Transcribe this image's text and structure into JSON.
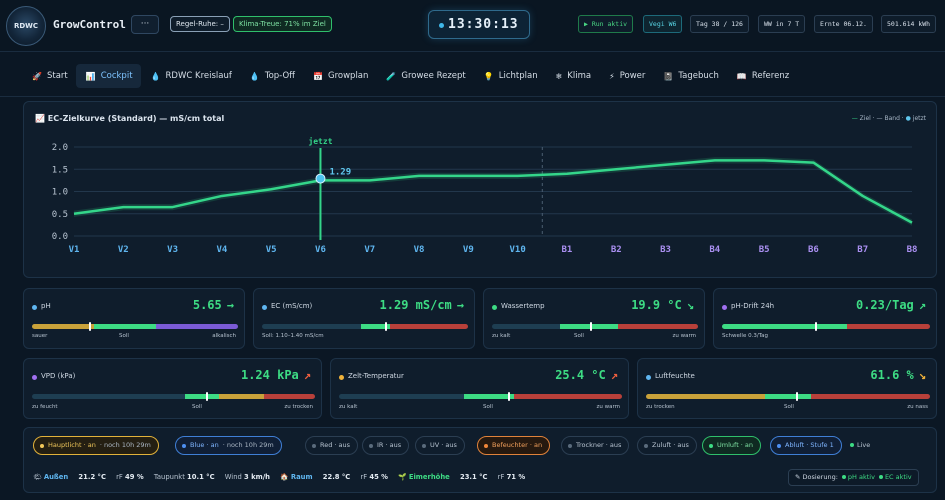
{
  "header": {
    "logo_text": "RDWC",
    "brand": "GrowControl",
    "more_label": "···",
    "regel_ruhe": "Regel-Ruhe: –",
    "klima_treue": "Klima-Treue: 71% im Ziel",
    "clock": "13:30:13",
    "run_status": "▶ Run aktiv",
    "phase": "Vegi W6",
    "tag": "Tag 38 / 126",
    "ww": "WW in 7 T",
    "ernte": "Ernte 06.12.",
    "kwh": "501.614 kWh"
  },
  "tabs": [
    {
      "icon": "🚀",
      "label": "Start",
      "active": false
    },
    {
      "icon": "📊",
      "label": "Cockpit",
      "active": true
    },
    {
      "icon": "💧",
      "label": "RDWC Kreislauf",
      "active": false
    },
    {
      "icon": "💧",
      "label": "Top-Off",
      "active": false
    },
    {
      "icon": "📅",
      "label": "Growplan",
      "active": false
    },
    {
      "icon": "🧪",
      "label": "Growee Rezept",
      "active": false
    },
    {
      "icon": "💡",
      "label": "Lichtplan",
      "active": false
    },
    {
      "icon": "❄",
      "label": "Klima",
      "active": false
    },
    {
      "icon": "⚡",
      "label": "Power",
      "active": false
    },
    {
      "icon": "📓",
      "label": "Tagebuch",
      "active": false
    },
    {
      "icon": "📖",
      "label": "Referenz",
      "active": false
    }
  ],
  "chart_data": {
    "type": "line",
    "title": "EC-Zielkurve (Standard) — mS/cm total",
    "legend": [
      "Ziel",
      "Band",
      "jetzt"
    ],
    "legend_placement": "top-right",
    "categories": [
      "V1",
      "V2",
      "V3",
      "V4",
      "V5",
      "V6",
      "V7",
      "V8",
      "V9",
      "V10",
      "B1",
      "B2",
      "B3",
      "B4",
      "B5",
      "B6",
      "B7",
      "B8"
    ],
    "series": [
      {
        "name": "Ziel",
        "values": [
          0.5,
          0.65,
          0.65,
          0.9,
          1.05,
          1.25,
          1.25,
          1.35,
          1.35,
          1.35,
          1.4,
          1.5,
          1.6,
          1.7,
          1.7,
          1.65,
          0.9,
          0.3
        ]
      }
    ],
    "yticks": [
      "0.0",
      "0.5",
      "1.0",
      "1.5",
      "2.0"
    ],
    "ylim": [
      0,
      2.0
    ],
    "now_index": 5,
    "now_label": "jetzt",
    "now_value": "1.29",
    "phase_split_after_index": 9,
    "grid": true
  },
  "cards": {
    "ph": {
      "label": "pH",
      "value": "5.65",
      "arrow": "→",
      "low": "sauer",
      "mid": "Soll",
      "high": "alkalisch",
      "level": 0.28,
      "dot": "#5fb6f0"
    },
    "ec": {
      "label": "EC (mS/cm)",
      "value": "1.29 mS/cm",
      "arrow": "→",
      "note": "Soll: 1.10–1.40 mS/cm",
      "level": 0.6,
      "dot": "#5fb6f0"
    },
    "water": {
      "label": "Wassertemp",
      "value": "19.9 °C",
      "arrow": "↘",
      "low": "zu kalt",
      "mid": "Soll",
      "high": "zu warm",
      "level": 0.48,
      "dot": "#3ddc84"
    },
    "drift": {
      "label": "pH-Drift 24h",
      "value": "0.23/Tag",
      "arrow": "↗",
      "note": "Schwelle 0.3/Tag",
      "level": 0.45,
      "dot": "#a070f0"
    },
    "vpd": {
      "label": "VPD (kPa)",
      "value": "1.24 kPa",
      "arrow": "↗",
      "low": "zu feucht",
      "mid": "Soll",
      "high": "zu trocken",
      "level": 0.62,
      "dot": "#a070f0"
    },
    "zelt": {
      "label": "Zelt-Temperatur",
      "value": "25.4 °C",
      "arrow": "↗",
      "low": "zu kalt",
      "mid": "Soll",
      "high": "zu warm",
      "level": 0.6,
      "dot": "#f0b23a"
    },
    "luft": {
      "label": "Luftfeuchte",
      "value": "61.6 %",
      "arrow": "↘",
      "low": "zu trocken",
      "mid": "Soll",
      "high": "zu nass",
      "level": 0.53,
      "dot": "#5fb6f0"
    }
  },
  "status": {
    "chips": [
      {
        "text": "Hauptlicht · an",
        "sub": "· noch 10h 29m",
        "style": "yellow"
      },
      {
        "text": "Blue · an",
        "sub": "· noch 10h 29m",
        "style": "blue"
      },
      {
        "text": "Red · aus",
        "sub": "",
        "style": "off"
      },
      {
        "text": "IR · aus",
        "sub": "",
        "style": "off"
      },
      {
        "text": "UV · aus",
        "sub": "",
        "style": "off"
      },
      {
        "text": "Befeuchter · an",
        "sub": "",
        "style": "orange"
      },
      {
        "text": "Trockner · aus",
        "sub": "",
        "style": "off"
      },
      {
        "text": "Zuluft · aus",
        "sub": "",
        "style": "off"
      },
      {
        "text": "Umluft · an",
        "sub": "",
        "style": "green"
      },
      {
        "text": "Abluft · Stufe 1",
        "sub": "",
        "style": "blue"
      }
    ],
    "live": "Live",
    "env": {
      "aussen_label": "Außen",
      "aussen_temp": "21.2 °C",
      "aussen_rf_label": "rF",
      "aussen_rf": "49 %",
      "taupunkt_label": "Taupunkt",
      "taupunkt": "10.1 °C",
      "wind_label": "Wind",
      "wind": "3 km/h",
      "raum_label": "Raum",
      "raum_temp": "22.8 °C",
      "raum_rf_label": "rF",
      "raum_rf": "45 %",
      "eimer_label": "Eimerhöhe",
      "eimer_temp": "23.1 °C",
      "eimer_rf_label": "rF",
      "eimer_rf": "71 %"
    },
    "dosing_label": "✎ Dosierung:",
    "dosing_ph": "pH aktiv",
    "dosing_ec": "EC aktiv"
  }
}
